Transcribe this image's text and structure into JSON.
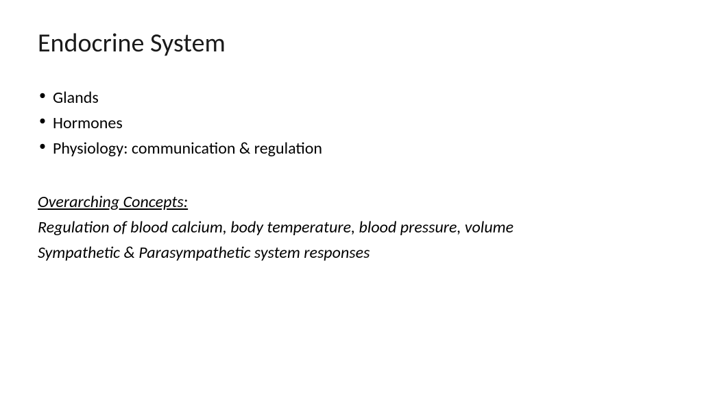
{
  "slide": {
    "title": "Endocrine System",
    "bullets": [
      "Glands",
      "Hormones",
      "Physiology: communication & regulation"
    ],
    "concepts": {
      "heading": "Overarching Concepts:",
      "lines": [
        "Regulation of blood calcium, body temperature, blood pressure, volume",
        "Sympathetic & Parasympathetic system responses"
      ]
    }
  },
  "styling": {
    "background_color": "#ffffff",
    "text_color": "#000000",
    "title_fontsize": 38,
    "body_fontsize": 24,
    "title_weight": 400,
    "font_family": "Calibri"
  }
}
